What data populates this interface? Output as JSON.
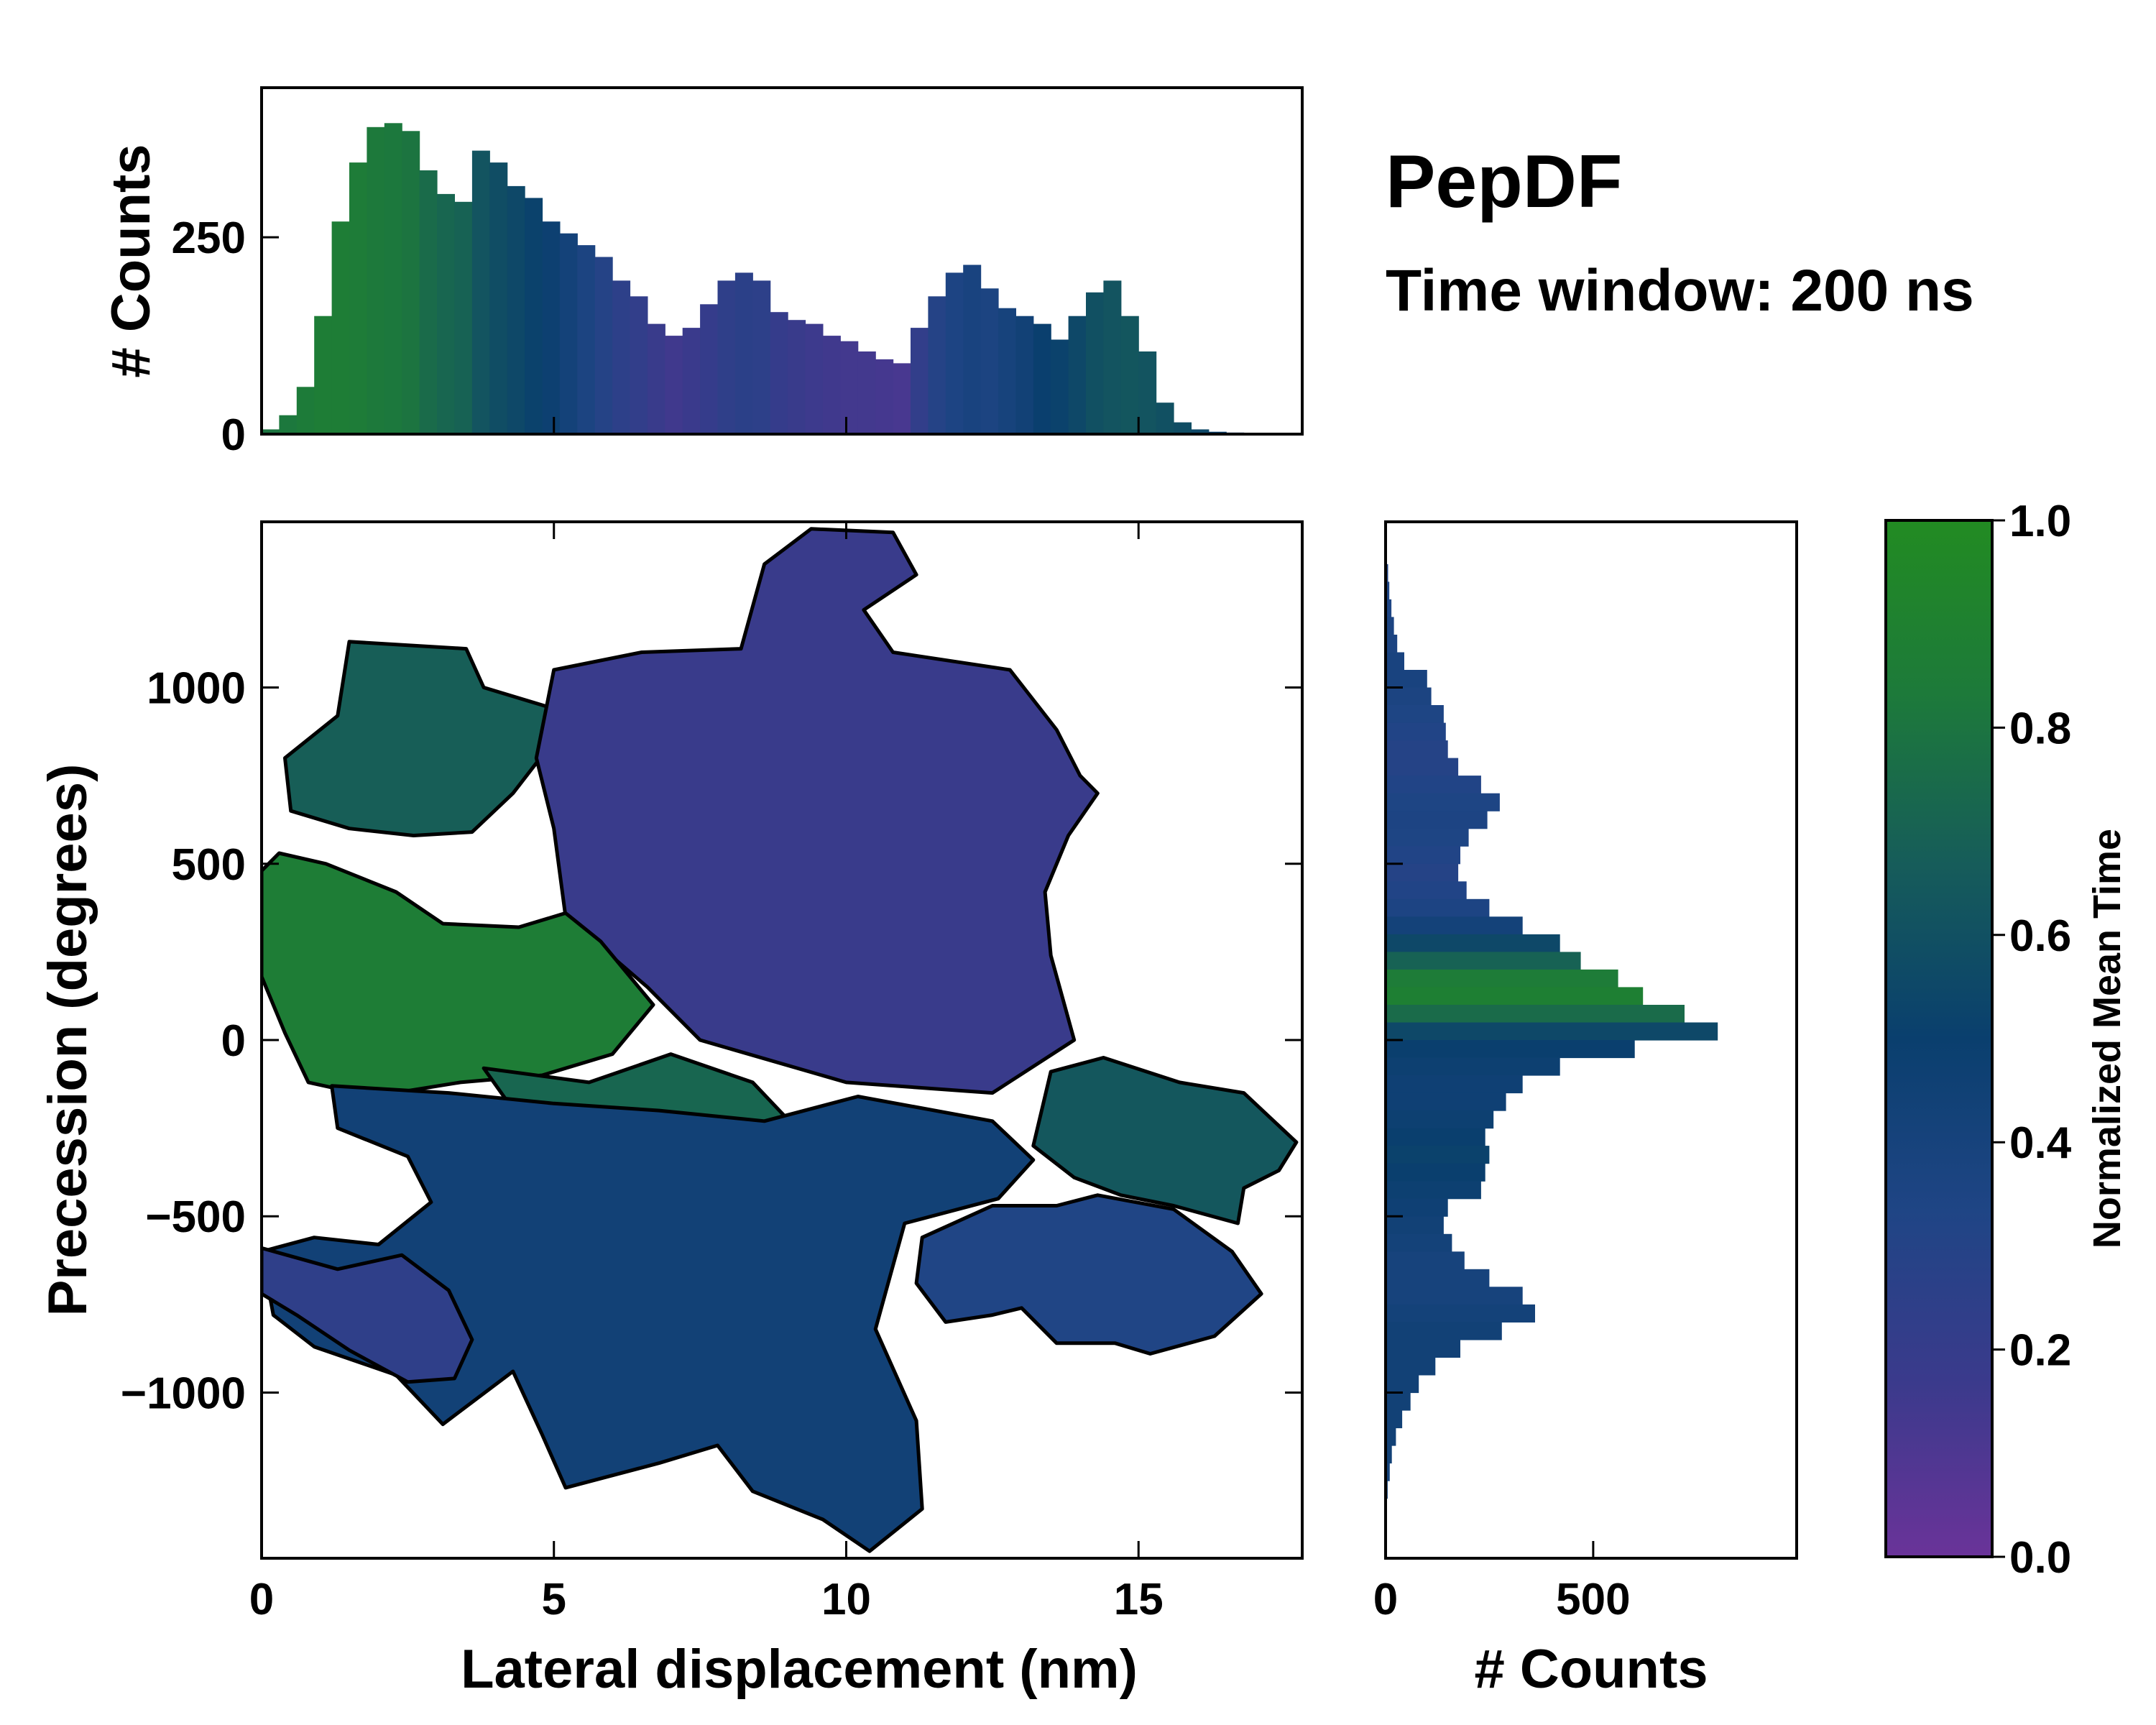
{
  "chart_data": {
    "type": "heatmap",
    "title": "PepDF",
    "subtitle": "Time window: 200 ns",
    "colormap": [
      "#6a3399",
      "#3b3a8c",
      "#1f4585",
      "#0a3f6e",
      "#165c5a",
      "#1d7a3a",
      "#228b22"
    ],
    "main": {
      "xlabel": "Lateral displacement (nm)",
      "ylabel": "Precession (degrees)",
      "xlim": [
        0,
        17.8
      ],
      "ylim": [
        -1470,
        1470
      ],
      "xticks": [
        {
          "v": 0,
          "label": "0"
        },
        {
          "v": 5,
          "label": "5"
        },
        {
          "v": 10,
          "label": "10"
        },
        {
          "v": 15,
          "label": "15"
        }
      ],
      "yticks": [
        {
          "v": 1000,
          "label": "1000"
        },
        {
          "v": 500,
          "label": "500"
        },
        {
          "v": 0,
          "label": "0"
        },
        {
          "v": -500,
          "label": "−500"
        },
        {
          "v": -1000,
          "label": "−1000"
        }
      ],
      "regions": [
        {
          "name": "left-upper-lobe",
          "value": 0.68,
          "points": [
            [
              1.5,
              1130
            ],
            [
              3.5,
              1110
            ],
            [
              3.8,
              1000
            ],
            [
              5.0,
              940
            ],
            [
              5.0,
              850
            ],
            [
              4.3,
              700
            ],
            [
              3.6,
              590
            ],
            [
              2.6,
              580
            ],
            [
              1.5,
              600
            ],
            [
              0.5,
              650
            ],
            [
              0.4,
              800
            ],
            [
              1.3,
              920
            ]
          ]
        },
        {
          "name": "top-central-blob",
          "value": 0.18,
          "points": [
            [
              5.0,
              1050
            ],
            [
              6.5,
              1100
            ],
            [
              8.2,
              1110
            ],
            [
              8.6,
              1350
            ],
            [
              9.4,
              1450
            ],
            [
              10.8,
              1440
            ],
            [
              11.2,
              1320
            ],
            [
              10.3,
              1220
            ],
            [
              10.8,
              1100
            ],
            [
              12.8,
              1050
            ],
            [
              13.6,
              880
            ],
            [
              14.0,
              750
            ],
            [
              14.3,
              700
            ],
            [
              13.8,
              580
            ],
            [
              13.4,
              420
            ],
            [
              13.5,
              240
            ],
            [
              13.9,
              0
            ],
            [
              12.5,
              -150
            ],
            [
              10.0,
              -120
            ],
            [
              7.5,
              0
            ],
            [
              6.6,
              150
            ],
            [
              5.2,
              350
            ],
            [
              5.0,
              600
            ],
            [
              4.7,
              800
            ]
          ]
        },
        {
          "name": "green-left-band",
          "value": 0.86,
          "points": [
            [
              0.0,
              480
            ],
            [
              0.3,
              530
            ],
            [
              1.1,
              500
            ],
            [
              2.3,
              420
            ],
            [
              3.1,
              330
            ],
            [
              4.4,
              320
            ],
            [
              5.2,
              360
            ],
            [
              5.8,
              280
            ],
            [
              6.7,
              100
            ],
            [
              6.0,
              -40
            ],
            [
              4.8,
              -100
            ],
            [
              3.4,
              -120
            ],
            [
              1.9,
              -160
            ],
            [
              0.8,
              -120
            ],
            [
              0.4,
              20
            ],
            [
              0.0,
              180
            ]
          ]
        },
        {
          "name": "center-green-band",
          "value": 0.72,
          "points": [
            [
              3.8,
              -80
            ],
            [
              5.6,
              -120
            ],
            [
              7.0,
              -40
            ],
            [
              8.4,
              -120
            ],
            [
              9.2,
              -260
            ],
            [
              8.8,
              -380
            ],
            [
              7.5,
              -430
            ],
            [
              6.5,
              -440
            ],
            [
              5.2,
              -330
            ],
            [
              4.4,
              -220
            ]
          ]
        },
        {
          "name": "lower-center-basin",
          "value": 0.44,
          "points": [
            [
              1.2,
              -130
            ],
            [
              3.2,
              -150
            ],
            [
              5.0,
              -180
            ],
            [
              6.8,
              -200
            ],
            [
              8.6,
              -230
            ],
            [
              10.2,
              -160
            ],
            [
              12.5,
              -230
            ],
            [
              13.2,
              -340
            ],
            [
              12.6,
              -450
            ],
            [
              11.0,
              -520
            ],
            [
              10.5,
              -820
            ],
            [
              11.2,
              -1080
            ],
            [
              11.3,
              -1330
            ],
            [
              10.4,
              -1450
            ],
            [
              9.6,
              -1360
            ],
            [
              8.4,
              -1280
            ],
            [
              7.8,
              -1150
            ],
            [
              6.8,
              -1200
            ],
            [
              5.2,
              -1270
            ],
            [
              4.8,
              -1120
            ],
            [
              4.3,
              -940
            ],
            [
              3.1,
              -1090
            ],
            [
              2.3,
              -950
            ],
            [
              0.9,
              -870
            ],
            [
              0.2,
              -780
            ],
            [
              0.0,
              -600
            ],
            [
              0.9,
              -560
            ],
            [
              2.0,
              -580
            ],
            [
              2.9,
              -460
            ],
            [
              2.5,
              -330
            ],
            [
              1.3,
              -250
            ]
          ]
        },
        {
          "name": "right-lower-lobe",
          "value": 0.33,
          "points": [
            [
              11.3,
              -560
            ],
            [
              12.5,
              -470
            ],
            [
              13.6,
              -470
            ],
            [
              14.3,
              -440
            ],
            [
              15.6,
              -480
            ],
            [
              16.6,
              -600
            ],
            [
              17.1,
              -720
            ],
            [
              16.3,
              -840
            ],
            [
              15.2,
              -890
            ],
            [
              14.6,
              -860
            ],
            [
              13.6,
              -860
            ],
            [
              13.0,
              -760
            ],
            [
              12.5,
              -780
            ],
            [
              11.7,
              -800
            ],
            [
              11.2,
              -690
            ]
          ]
        },
        {
          "name": "right-green-lobe",
          "value": 0.64,
          "points": [
            [
              13.5,
              -90
            ],
            [
              14.4,
              -50
            ],
            [
              15.7,
              -120
            ],
            [
              16.8,
              -150
            ],
            [
              17.7,
              -290
            ],
            [
              17.4,
              -370
            ],
            [
              16.8,
              -420
            ],
            [
              16.7,
              -520
            ],
            [
              15.6,
              -470
            ],
            [
              14.7,
              -440
            ],
            [
              13.9,
              -390
            ],
            [
              13.2,
              -300
            ]
          ]
        },
        {
          "name": "left-lower-lobe",
          "value": 0.24,
          "points": [
            [
              0.0,
              -590
            ],
            [
              1.3,
              -650
            ],
            [
              2.4,
              -610
            ],
            [
              3.2,
              -710
            ],
            [
              3.6,
              -850
            ],
            [
              3.3,
              -960
            ],
            [
              2.5,
              -970
            ],
            [
              1.5,
              -880
            ],
            [
              0.6,
              -780
            ],
            [
              0.0,
              -720
            ]
          ]
        }
      ]
    },
    "top_histogram": {
      "ylabel": "# Counts",
      "ylim": [
        0,
        440
      ],
      "yticks": [
        {
          "v": 0,
          "label": "0"
        },
        {
          "v": 250,
          "label": "250"
        }
      ],
      "bin_centers": [
        0.15,
        0.45,
        0.75,
        1.05,
        1.35,
        1.65,
        1.95,
        2.25,
        2.55,
        2.85,
        3.15,
        3.45,
        3.75,
        4.05,
        4.35,
        4.65,
        4.95,
        5.25,
        5.55,
        5.85,
        6.15,
        6.45,
        6.75,
        7.05,
        7.35,
        7.65,
        7.95,
        8.25,
        8.55,
        8.85,
        9.15,
        9.45,
        9.75,
        10.05,
        10.35,
        10.65,
        10.95,
        11.25,
        11.55,
        11.85,
        12.15,
        12.45,
        12.75,
        13.05,
        13.35,
        13.65,
        13.95,
        14.25,
        14.55,
        14.85,
        15.15,
        15.45,
        15.75,
        16.05,
        16.35,
        16.65,
        16.95,
        17.25,
        17.55
      ],
      "counts": [
        6,
        24,
        60,
        150,
        270,
        345,
        390,
        395,
        385,
        335,
        305,
        295,
        360,
        345,
        315,
        300,
        270,
        255,
        240,
        225,
        195,
        175,
        140,
        125,
        135,
        165,
        195,
        205,
        195,
        155,
        145,
        140,
        125,
        118,
        105,
        95,
        90,
        135,
        175,
        205,
        215,
        185,
        160,
        150,
        140,
        120,
        150,
        180,
        195,
        150,
        105,
        40,
        15,
        6,
        3,
        2,
        1,
        1,
        1
      ],
      "colors": [
        0.8,
        0.82,
        0.84,
        0.86,
        0.86,
        0.85,
        0.83,
        0.82,
        0.8,
        0.75,
        0.72,
        0.7,
        0.62,
        0.58,
        0.55,
        0.52,
        0.48,
        0.42,
        0.36,
        0.3,
        0.25,
        0.22,
        0.18,
        0.15,
        0.17,
        0.2,
        0.24,
        0.26,
        0.25,
        0.2,
        0.18,
        0.16,
        0.15,
        0.14,
        0.14,
        0.13,
        0.12,
        0.22,
        0.3,
        0.35,
        0.38,
        0.36,
        0.4,
        0.44,
        0.5,
        0.52,
        0.55,
        0.6,
        0.62,
        0.63,
        0.62,
        0.6,
        0.58,
        0.55,
        0.5,
        0.45,
        0.4,
        0.38,
        0.35
      ]
    },
    "right_histogram": {
      "xlabel": "# Counts",
      "xlim": [
        0,
        990
      ],
      "xticks": [
        {
          "v": 0,
          "label": "0"
        },
        {
          "v": 500,
          "label": "500"
        }
      ],
      "bin_centers": [
        1425,
        1375,
        1325,
        1275,
        1225,
        1175,
        1125,
        1075,
        1025,
        975,
        925,
        875,
        825,
        775,
        725,
        675,
        625,
        575,
        525,
        475,
        425,
        375,
        325,
        275,
        225,
        175,
        125,
        75,
        25,
        -25,
        -75,
        -125,
        -175,
        -225,
        -275,
        -325,
        -375,
        -425,
        -475,
        -525,
        -575,
        -625,
        -675,
        -725,
        -775,
        -825,
        -875,
        -925,
        -975,
        -1025,
        -1075,
        -1125,
        -1175,
        -1225,
        -1275,
        -1325,
        -1375,
        -1425
      ],
      "counts": [
        1,
        3,
        6,
        9,
        14,
        20,
        28,
        45,
        100,
        110,
        140,
        145,
        150,
        175,
        230,
        275,
        245,
        200,
        180,
        175,
        195,
        250,
        330,
        420,
        470,
        560,
        620,
        720,
        800,
        600,
        420,
        330,
        290,
        260,
        240,
        250,
        240,
        230,
        150,
        140,
        160,
        190,
        250,
        330,
        360,
        280,
        180,
        120,
        80,
        60,
        40,
        25,
        15,
        10,
        5,
        2,
        1,
        1
      ],
      "colors": [
        0.3,
        0.32,
        0.32,
        0.34,
        0.34,
        0.36,
        0.36,
        0.38,
        0.38,
        0.36,
        0.34,
        0.32,
        0.3,
        0.3,
        0.32,
        0.34,
        0.35,
        0.34,
        0.32,
        0.3,
        0.32,
        0.35,
        0.42,
        0.55,
        0.7,
        0.85,
        0.88,
        0.75,
        0.55,
        0.5,
        0.48,
        0.46,
        0.46,
        0.48,
        0.5,
        0.52,
        0.5,
        0.48,
        0.46,
        0.44,
        0.42,
        0.4,
        0.4,
        0.4,
        0.42,
        0.44,
        0.44,
        0.44,
        0.44,
        0.44,
        0.44,
        0.44,
        0.44,
        0.42,
        0.42,
        0.42,
        0.4,
        0.4
      ]
    },
    "colorbar": {
      "label": "Normalized Mean Time",
      "range": [
        0,
        1
      ],
      "ticks": [
        {
          "v": 0.0,
          "label": "0.0"
        },
        {
          "v": 0.2,
          "label": "0.2"
        },
        {
          "v": 0.4,
          "label": "0.4"
        },
        {
          "v": 0.6,
          "label": "0.6"
        },
        {
          "v": 0.8,
          "label": "0.8"
        },
        {
          "v": 1.0,
          "label": "1.0"
        }
      ]
    }
  }
}
